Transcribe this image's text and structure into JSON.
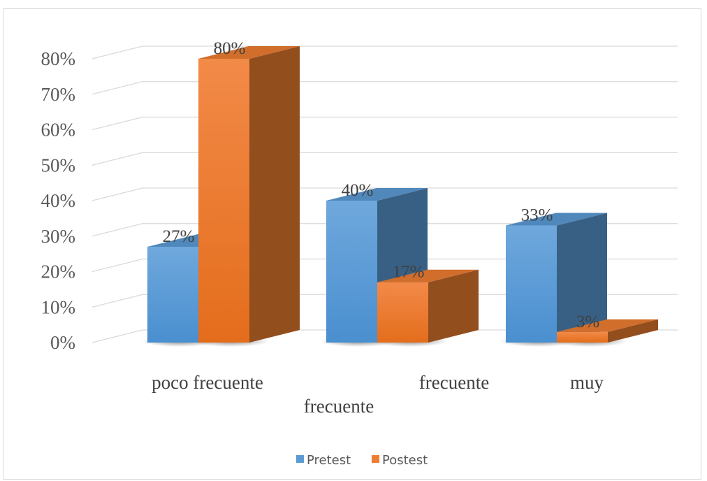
{
  "chart_data": {
    "type": "bar",
    "categories": [
      "poco frecuente",
      "frecuente",
      "muy frecuente"
    ],
    "category_label_lines": [
      [
        "poco frecuente"
      ],
      [
        "frecuente"
      ],
      [
        "muy",
        "frecuente"
      ]
    ],
    "series": [
      {
        "name": "Pretest",
        "values": [
          27,
          40,
          33
        ],
        "labels": [
          "27%",
          "40%",
          "33%"
        ],
        "color": "#5b9bd5"
      },
      {
        "name": "Postest",
        "values": [
          80,
          17,
          3
        ],
        "labels": [
          "80%",
          "17%",
          "3%"
        ],
        "color": "#ed7d31"
      }
    ],
    "ylim": [
      0,
      80
    ],
    "yticks": [
      "0%",
      "10%",
      "20%",
      "30%",
      "40%",
      "50%",
      "60%",
      "70%",
      "80%"
    ],
    "grid": true,
    "legend_position": "bottom",
    "style": "3d-clustered-column"
  }
}
